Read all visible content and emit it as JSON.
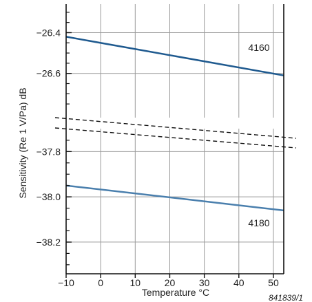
{
  "chart_data": {
    "type": "line",
    "xlabel": "Temperature °C",
    "ylabel": "Sensitivity (Re 1 V/Pa) dB",
    "xlim": [
      -10,
      53
    ],
    "x_ticks": [
      "−10",
      "0",
      "10",
      "20",
      "30",
      "40",
      "50"
    ],
    "x_tick_values": [
      -10,
      0,
      10,
      20,
      30,
      40,
      50
    ],
    "upper_panel": {
      "ylim": [
        -26.78,
        -26.26
      ],
      "y_ticks": [
        "−26.4",
        "−26.6"
      ],
      "y_tick_values": [
        -26.4,
        -26.6
      ]
    },
    "lower_panel": {
      "ylim": [
        -38.34,
        -37.72
      ],
      "y_ticks": [
        "−37.8",
        "−38.0",
        "−38.2"
      ],
      "y_tick_values": [
        -37.8,
        -38.0,
        -38.2
      ]
    },
    "series": [
      {
        "name": "4160",
        "panel": "upper",
        "color": "#1f5a8f",
        "x": [
          -10,
          53
        ],
        "y": [
          -26.42,
          -26.61
        ]
      },
      {
        "name": "4180",
        "panel": "lower",
        "color": "#4a7fad",
        "x": [
          -10,
          53
        ],
        "y": [
          -37.95,
          -38.06
        ]
      }
    ],
    "axis_break": "dashed",
    "grid": true,
    "figure_code": "841839/1"
  }
}
